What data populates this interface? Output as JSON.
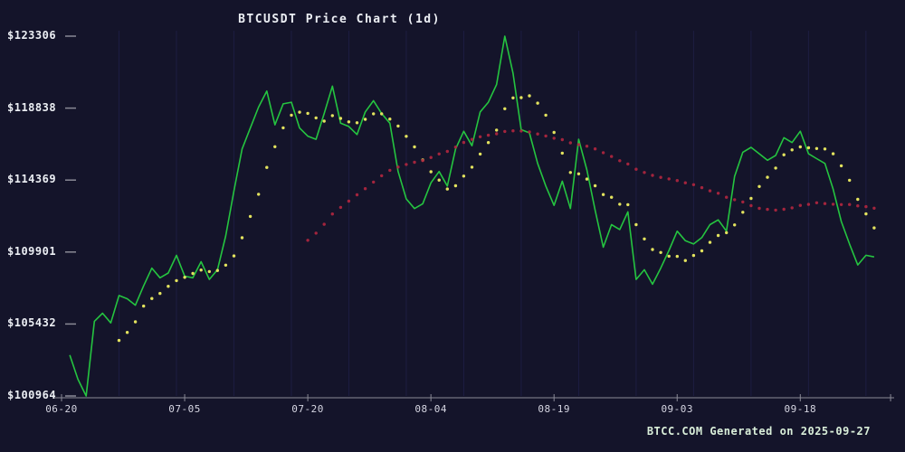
{
  "chart_data": {
    "type": "line",
    "title": "BTCUSDT Price Chart (1d)",
    "footer": "BTCC.COM Generated on 2025-09-27",
    "symbol": "BTCUSDT",
    "interval": "1d",
    "ylim": [
      100964,
      123306
    ],
    "y_ticks": [
      {
        "value": 123306,
        "label": "$123306"
      },
      {
        "value": 118838,
        "label": "$118838"
      },
      {
        "value": 114369,
        "label": "$114369"
      },
      {
        "value": 109901,
        "label": "$109901"
      },
      {
        "value": 105432,
        "label": "$105432"
      },
      {
        "value": 100964,
        "label": "$100964"
      }
    ],
    "x_ticks": [
      {
        "day": 0,
        "label": "06-20"
      },
      {
        "day": 15,
        "label": "07-05"
      },
      {
        "day": 30,
        "label": "07-20"
      },
      {
        "day": 45,
        "label": "08-04"
      },
      {
        "day": 60,
        "label": "08-19"
      },
      {
        "day": 75,
        "label": "09-03"
      },
      {
        "day": 90,
        "label": "09-18"
      }
    ],
    "end_tick_day": 101,
    "grid": {
      "vertical_weekly": true,
      "horizontal": false
    },
    "legend": "none",
    "colors": {
      "background": "#14142a",
      "gridline": "#20204a",
      "axis": "#8a8a96",
      "price_line": "#25c440",
      "ma7_dots": "#e3e35e",
      "ma30_dots": "#b0263f",
      "footer_text": "#d9eed9",
      "title_text": "#eceff4"
    },
    "series": [
      {
        "name": "price",
        "type": "line",
        "color_key": "price_line",
        "start_day": 1,
        "values": [
          103500,
          102000,
          100964,
          105600,
          106100,
          105500,
          107200,
          107000,
          106600,
          107800,
          108900,
          108300,
          108600,
          109700,
          108400,
          108300,
          109300,
          108200,
          108800,
          110900,
          113700,
          116300,
          117600,
          118900,
          119900,
          117800,
          119100,
          119200,
          117600,
          117100,
          116900,
          118500,
          120200,
          117900,
          117700,
          117200,
          118600,
          119300,
          118500,
          117900,
          114900,
          113200,
          112600,
          112900,
          114200,
          114900,
          114000,
          116300,
          117400,
          116500,
          118600,
          119200,
          120300,
          123306,
          121000,
          117500,
          117300,
          115400,
          114000,
          112800,
          114300,
          112600,
          116900,
          115000,
          112500,
          110200,
          111600,
          111300,
          112400,
          108200,
          108800,
          107900,
          108900,
          110000,
          111200,
          110600,
          110400,
          110800,
          111600,
          111900,
          111200,
          114600,
          116100,
          116400,
          116000,
          115600,
          115900,
          117000,
          116700,
          117400,
          116000,
          115700,
          115400,
          113800,
          111800,
          110400,
          109100,
          109700,
          109600
        ]
      },
      {
        "name": "ma7",
        "type": "dots",
        "color_key": "ma7_dots",
        "derived_from": "price",
        "window": 7
      },
      {
        "name": "ma30",
        "type": "dots",
        "color_key": "ma30_dots",
        "derived_from": "price",
        "window": 30
      }
    ]
  }
}
